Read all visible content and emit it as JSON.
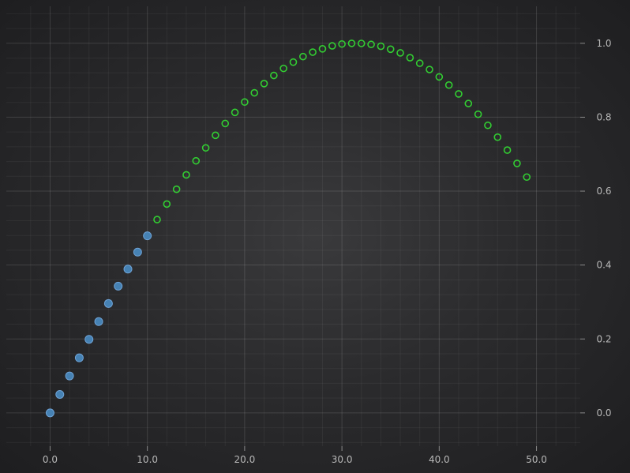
{
  "chart_data": {
    "type": "scatter",
    "title": "",
    "xlabel": "",
    "ylabel": "",
    "xlim": [
      -4.5,
      54.5
    ],
    "ylim": [
      -0.09,
      1.1
    ],
    "x_ticks": [
      0,
      10,
      20,
      30,
      40,
      50
    ],
    "x_tick_labels": [
      "0.0",
      "10.0",
      "20.0",
      "30.0",
      "40.0",
      "50.0"
    ],
    "y_ticks": [
      0,
      0.2,
      0.4,
      0.6,
      0.8,
      1.0
    ],
    "y_tick_labels": [
      "0.0",
      "0.2",
      "0.4",
      "0.6",
      "0.8",
      "1.0"
    ],
    "y_axis_position": "right",
    "grid": true,
    "series": [
      {
        "marker": "filled-circle",
        "color": "#4682b4",
        "x": [
          0,
          1,
          2,
          3,
          4,
          5,
          6,
          7,
          8,
          9,
          10
        ],
        "y": [
          0.0,
          0.05,
          0.1,
          0.149,
          0.199,
          0.247,
          0.296,
          0.343,
          0.389,
          0.435,
          0.479
        ]
      },
      {
        "marker": "hollow-circle",
        "color": "#32cd32",
        "x": [
          11,
          12,
          13,
          14,
          15,
          16,
          17,
          18,
          19,
          20,
          21,
          22,
          23,
          24,
          25,
          26,
          27,
          28,
          29,
          30,
          31,
          32,
          33,
          34,
          35,
          36,
          37,
          38,
          39,
          40,
          41,
          42,
          43,
          44,
          45,
          46,
          47,
          48,
          49
        ],
        "y": [
          0.523,
          0.565,
          0.605,
          0.644,
          0.682,
          0.717,
          0.751,
          0.783,
          0.813,
          0.841,
          0.866,
          0.891,
          0.913,
          0.932,
          0.949,
          0.964,
          0.976,
          0.985,
          0.993,
          0.998,
          0.9998,
          0.9996,
          0.997,
          0.992,
          0.984,
          0.974,
          0.961,
          0.946,
          0.929,
          0.909,
          0.887,
          0.863,
          0.837,
          0.808,
          0.778,
          0.746,
          0.711,
          0.675,
          0.638
        ]
      }
    ]
  }
}
